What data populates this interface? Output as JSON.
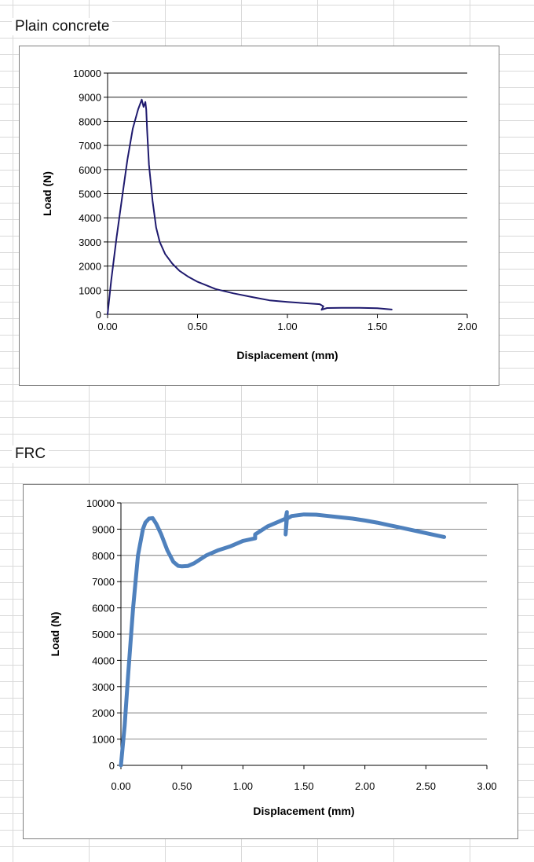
{
  "sheet": {
    "label_plain": "Plain concrete",
    "label_frc": "FRC"
  },
  "chart_data": [
    {
      "type": "line",
      "xlabel": "Displacement (mm)",
      "ylabel": "Load (N)",
      "xlim": [
        0,
        2
      ],
      "ylim": [
        0,
        10000
      ],
      "xticks": [
        "0.00",
        "0.50",
        "1.00",
        "1.50",
        "2.00"
      ],
      "yticks": [
        "0",
        "1000",
        "2000",
        "3000",
        "4000",
        "5000",
        "6000",
        "7000",
        "8000",
        "9000",
        "10000"
      ],
      "grid": "horizontal",
      "line_color": "#1f1a6e",
      "series": [
        {
          "x": [
            0.0,
            0.02,
            0.05,
            0.08,
            0.11,
            0.14,
            0.17,
            0.19,
            0.2,
            0.21,
            0.215,
            0.22,
            0.23,
            0.25,
            0.27,
            0.29,
            0.32,
            0.36,
            0.4,
            0.45,
            0.5,
            0.55,
            0.6,
            0.7,
            0.8,
            0.9,
            1.0,
            1.1,
            1.18,
            1.2,
            1.19,
            1.22,
            1.3,
            1.4,
            1.5,
            1.58
          ],
          "y": [
            0,
            1400,
            3200,
            4800,
            6400,
            7700,
            8500,
            8900,
            8600,
            8800,
            8500,
            7600,
            6200,
            4700,
            3600,
            3000,
            2500,
            2100,
            1800,
            1550,
            1350,
            1200,
            1050,
            870,
            720,
            580,
            510,
            460,
            420,
            330,
            190,
            260,
            270,
            270,
            250,
            200
          ]
        }
      ]
    },
    {
      "type": "line",
      "xlabel": "Displacement (mm)",
      "ylabel": "Load (N)",
      "xlim": [
        0,
        3
      ],
      "ylim": [
        0,
        10000
      ],
      "xticks": [
        "0.00",
        "0.50",
        "1.00",
        "1.50",
        "2.00",
        "2.50",
        "3.00"
      ],
      "yticks": [
        "0",
        "1000",
        "2000",
        "3000",
        "4000",
        "5000",
        "6000",
        "7000",
        "8000",
        "9000",
        "10000"
      ],
      "grid": "horizontal",
      "line_color": "#4f81bd",
      "series": [
        {
          "x": [
            0.0,
            0.03,
            0.06,
            0.1,
            0.14,
            0.18,
            0.2,
            0.23,
            0.26,
            0.29,
            0.33,
            0.38,
            0.43,
            0.47,
            0.5,
            0.55,
            0.6,
            0.7,
            0.8,
            0.9,
            1.0,
            1.1,
            1.1,
            1.2,
            1.3,
            1.35,
            1.36,
            1.35,
            1.36,
            1.4,
            1.5,
            1.6,
            1.7,
            1.8,
            1.9,
            2.0,
            2.1,
            2.2,
            2.3,
            2.4,
            2.5,
            2.6,
            2.65
          ],
          "y": [
            0,
            1500,
            3500,
            6000,
            8000,
            9000,
            9250,
            9400,
            9420,
            9200,
            8800,
            8200,
            7750,
            7600,
            7580,
            7600,
            7700,
            8000,
            8200,
            8350,
            8550,
            8650,
            8800,
            9100,
            9300,
            9400,
            9650,
            8800,
            9400,
            9500,
            9560,
            9550,
            9500,
            9450,
            9400,
            9330,
            9250,
            9150,
            9050,
            8950,
            8850,
            8750,
            8700
          ]
        }
      ]
    }
  ]
}
